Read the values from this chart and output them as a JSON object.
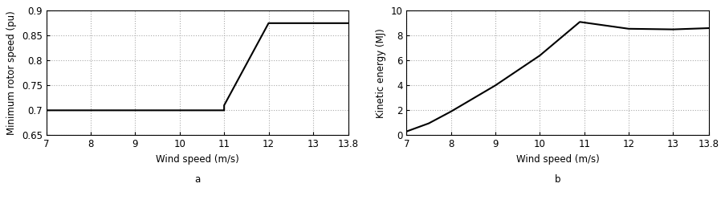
{
  "plot_a": {
    "x": [
      7,
      11,
      11,
      12,
      13.8
    ],
    "y": [
      0.7,
      0.7,
      0.71,
      0.875,
      0.875
    ],
    "xlabel": "Wind speed (m/s)",
    "ylabel": "Minimum rotor speed (pu)",
    "xlim": [
      7,
      13.8
    ],
    "ylim": [
      0.65,
      0.9
    ],
    "xticks": [
      7,
      8,
      9,
      10,
      11,
      12,
      13,
      13.8
    ],
    "xticklabels": [
      "7",
      "8",
      "9",
      "10",
      "11",
      "12",
      "13",
      "13.8"
    ],
    "yticks": [
      0.65,
      0.7,
      0.75,
      0.8,
      0.85,
      0.9
    ],
    "yticklabels": [
      "0.65",
      "0.7",
      "0.75",
      "0.8",
      "0.85",
      "0.9"
    ],
    "label": "a"
  },
  "plot_b": {
    "x": [
      7,
      7.5,
      8,
      9,
      10,
      10.9,
      11.5,
      12,
      13,
      13.8
    ],
    "y": [
      0.3,
      0.95,
      1.9,
      4.0,
      6.4,
      9.1,
      8.8,
      8.55,
      8.5,
      8.6
    ],
    "xlabel": "Wind speed (m/s)",
    "ylabel": "Kinetic energy (MJ)",
    "xlim": [
      7,
      13.8
    ],
    "ylim": [
      0,
      10
    ],
    "xticks": [
      7,
      8,
      9,
      10,
      11,
      12,
      13,
      13.8
    ],
    "xticklabels": [
      "7",
      "8",
      "9",
      "10",
      "11",
      "12",
      "13",
      "13.8"
    ],
    "yticks": [
      0,
      2,
      4,
      6,
      8,
      10
    ],
    "yticklabels": [
      "0",
      "2",
      "4",
      "6",
      "8",
      "10"
    ],
    "label": "b"
  },
  "line_color": "#000000",
  "line_width": 1.5,
  "grid_color": "#aaaaaa",
  "grid_linestyle": ":",
  "background_color": "#ffffff",
  "font_size": 8.5,
  "label_font_size": 8.5
}
